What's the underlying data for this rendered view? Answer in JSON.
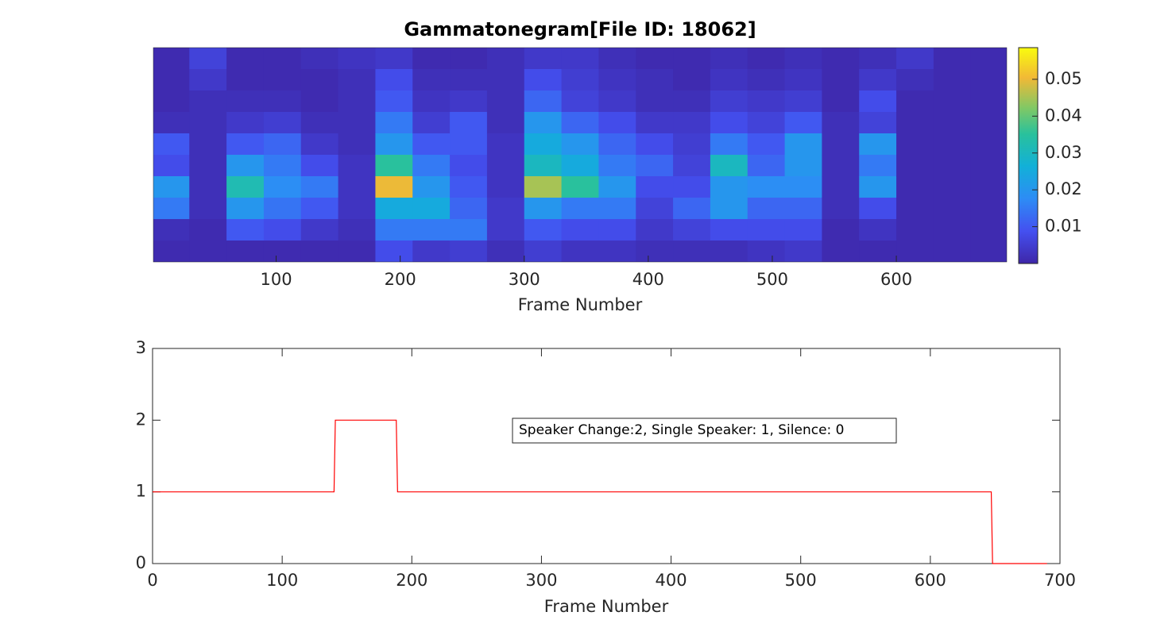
{
  "chart_data": [
    {
      "type": "heatmap",
      "title": "Gammatonegram[File ID: 18062]",
      "x_label": "Frame Number",
      "xlim": [
        1,
        689
      ],
      "xticks": [
        100,
        200,
        300,
        400,
        500,
        600
      ],
      "clim": [
        0,
        0.0586
      ],
      "cticks": [
        0.01,
        0.02,
        0.03,
        0.04,
        0.05
      ],
      "colormap": "parula",
      "x": [
        15,
        45,
        75,
        105,
        135,
        165,
        195,
        225,
        255,
        285,
        315,
        345,
        375,
        405,
        435,
        465,
        495,
        525,
        555,
        585,
        615,
        645,
        675
      ],
      "z": [
        [
          0.001,
          0.001,
          0.001,
          0.002,
          0.01,
          0.008,
          0.02,
          0.015,
          0.002,
          0.001
        ],
        [
          0.006,
          0.004,
          0.002,
          0.002,
          0.002,
          0.002,
          0.002,
          0.002,
          0.001,
          0.001
        ],
        [
          0.001,
          0.001,
          0.002,
          0.004,
          0.01,
          0.02,
          0.032,
          0.02,
          0.01,
          0.001
        ],
        [
          0.001,
          0.001,
          0.002,
          0.005,
          0.012,
          0.015,
          0.018,
          0.014,
          0.008,
          0.001
        ],
        [
          0.002,
          0.001,
          0.001,
          0.002,
          0.004,
          0.008,
          0.015,
          0.01,
          0.004,
          0.001
        ],
        [
          0.003,
          0.002,
          0.002,
          0.002,
          0.002,
          0.003,
          0.003,
          0.003,
          0.002,
          0.001
        ],
        [
          0.004,
          0.008,
          0.01,
          0.015,
          0.02,
          0.035,
          0.05,
          0.025,
          0.015,
          0.008
        ],
        [
          0.001,
          0.002,
          0.003,
          0.005,
          0.01,
          0.015,
          0.02,
          0.025,
          0.015,
          0.004
        ],
        [
          0.001,
          0.002,
          0.004,
          0.01,
          0.01,
          0.008,
          0.01,
          0.012,
          0.015,
          0.005
        ],
        [
          0.002,
          0.002,
          0.002,
          0.002,
          0.003,
          0.003,
          0.003,
          0.004,
          0.004,
          0.002
        ],
        [
          0.004,
          0.008,
          0.012,
          0.02,
          0.025,
          0.03,
          0.045,
          0.02,
          0.01,
          0.005
        ],
        [
          0.004,
          0.005,
          0.006,
          0.012,
          0.02,
          0.025,
          0.035,
          0.015,
          0.008,
          0.003
        ],
        [
          0.002,
          0.003,
          0.004,
          0.008,
          0.012,
          0.015,
          0.02,
          0.015,
          0.008,
          0.003
        ],
        [
          0.001,
          0.002,
          0.002,
          0.004,
          0.008,
          0.012,
          0.008,
          0.006,
          0.004,
          0.002
        ],
        [
          0.001,
          0.001,
          0.002,
          0.004,
          0.005,
          0.006,
          0.008,
          0.012,
          0.006,
          0.002
        ],
        [
          0.002,
          0.003,
          0.005,
          0.008,
          0.015,
          0.03,
          0.02,
          0.02,
          0.008,
          0.002
        ],
        [
          0.001,
          0.002,
          0.004,
          0.006,
          0.01,
          0.012,
          0.018,
          0.012,
          0.008,
          0.003
        ],
        [
          0.002,
          0.003,
          0.005,
          0.01,
          0.02,
          0.02,
          0.018,
          0.012,
          0.008,
          0.004
        ],
        [
          0.001,
          0.001,
          0.001,
          0.002,
          0.002,
          0.002,
          0.002,
          0.002,
          0.001,
          0.001
        ],
        [
          0.002,
          0.004,
          0.008,
          0.006,
          0.02,
          0.015,
          0.02,
          0.008,
          0.003,
          0.001
        ],
        [
          0.004,
          0.002,
          0.001,
          0.001,
          0.001,
          0.001,
          0.001,
          0.001,
          0.001,
          0.001
        ],
        [
          0.001,
          0.001,
          0.001,
          0.001,
          0.001,
          0.001,
          0.001,
          0.001,
          0.001,
          0.001
        ],
        [
          0.001,
          0.001,
          0.001,
          0.001,
          0.001,
          0.001,
          0.001,
          0.001,
          0.001,
          0.001
        ]
      ]
    },
    {
      "type": "line",
      "x_label": "Frame Number",
      "annotation": "Speaker Change:2, Single Speaker: 1, Silence: 0",
      "xlim": [
        0,
        700
      ],
      "xticks": [
        0,
        100,
        200,
        300,
        400,
        500,
        600,
        700
      ],
      "ylim": [
        0,
        3
      ],
      "yticks": [
        0,
        1,
        2,
        3
      ],
      "series": [
        {
          "color": "#ff0000",
          "x": [
            0,
            140,
            141,
            188,
            189,
            647,
            648,
            690
          ],
          "values": [
            1,
            1,
            2,
            2,
            1,
            1,
            0,
            0
          ]
        }
      ]
    }
  ]
}
